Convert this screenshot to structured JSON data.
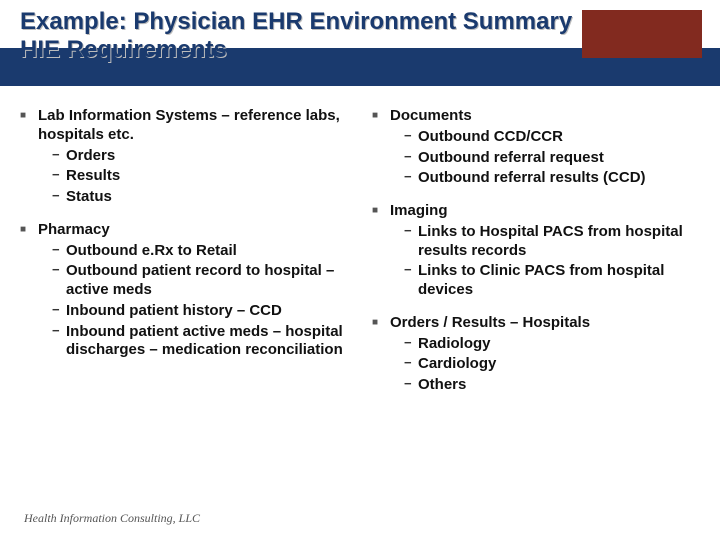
{
  "title": {
    "line1": "Example: Physician EHR Environment Summary",
    "line2": "HIE Requirements",
    "color": "#1a3a6e",
    "banner_color": "#1a3a6e",
    "shadow_color": "#bcbcbc"
  },
  "logo": {
    "bg_color": "#822a1f"
  },
  "columns": {
    "left": [
      {
        "heading": "Lab Information Systems – reference labs, hospitals etc.",
        "subs": [
          "Orders",
          "Results",
          "Status"
        ]
      },
      {
        "heading": "Pharmacy",
        "subs": [
          "Outbound e.Rx to Retail",
          "Outbound patient record to hospital – active meds",
          "Inbound patient history – CCD",
          "Inbound patient active meds – hospital discharges – medication reconciliation"
        ]
      }
    ],
    "right": [
      {
        "heading": "Documents",
        "subs": [
          "Outbound CCD/CCR",
          "Outbound referral request",
          "Outbound referral results (CCD)"
        ]
      },
      {
        "heading": "Imaging",
        "subs": [
          "Links to Hospital PACS from hospital results records",
          "Links to Clinic PACS from hospital devices"
        ]
      },
      {
        "heading": "Orders / Results – Hospitals",
        "subs": [
          "Radiology",
          "Cardiology",
          "Others"
        ]
      }
    ]
  },
  "bullet_marker": "■",
  "sub_marker": "−",
  "footer": "Health Information Consulting, LLC",
  "text_color": "#111111",
  "background_color": "#ffffff"
}
